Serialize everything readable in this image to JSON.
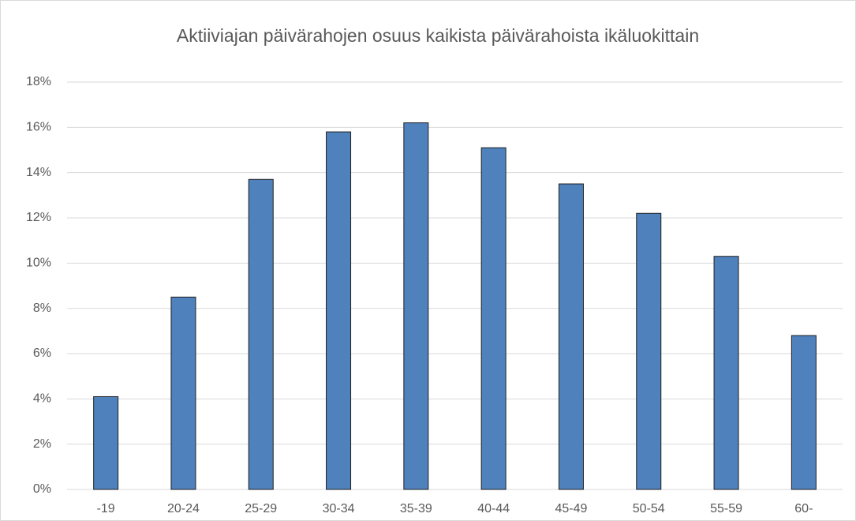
{
  "chart_data": {
    "type": "bar",
    "title": "Aktiiviajan päivärahojen osuus kaikista päivärahoista ikäluokittain",
    "categories": [
      "-19",
      "20-24",
      "25-29",
      "30-34",
      "35-39",
      "40-44",
      "45-49",
      "50-54",
      "55-59",
      "60-"
    ],
    "values": [
      4.1,
      8.5,
      13.7,
      15.8,
      16.2,
      15.1,
      13.5,
      12.2,
      10.3,
      6.8
    ],
    "color": "#4f81bd",
    "ylim": [
      0,
      18
    ],
    "yticks": [
      {
        "value": 0,
        "label": "0%"
      },
      {
        "value": 2,
        "label": "2%"
      },
      {
        "value": 4,
        "label": "4%"
      },
      {
        "value": 6,
        "label": "6%"
      },
      {
        "value": 8,
        "label": "8%"
      },
      {
        "value": 10,
        "label": "10%"
      },
      {
        "value": 12,
        "label": "12%"
      },
      {
        "value": 14,
        "label": "14%"
      },
      {
        "value": 16,
        "label": "16%"
      },
      {
        "value": 18,
        "label": "18%"
      }
    ],
    "grid": true
  }
}
